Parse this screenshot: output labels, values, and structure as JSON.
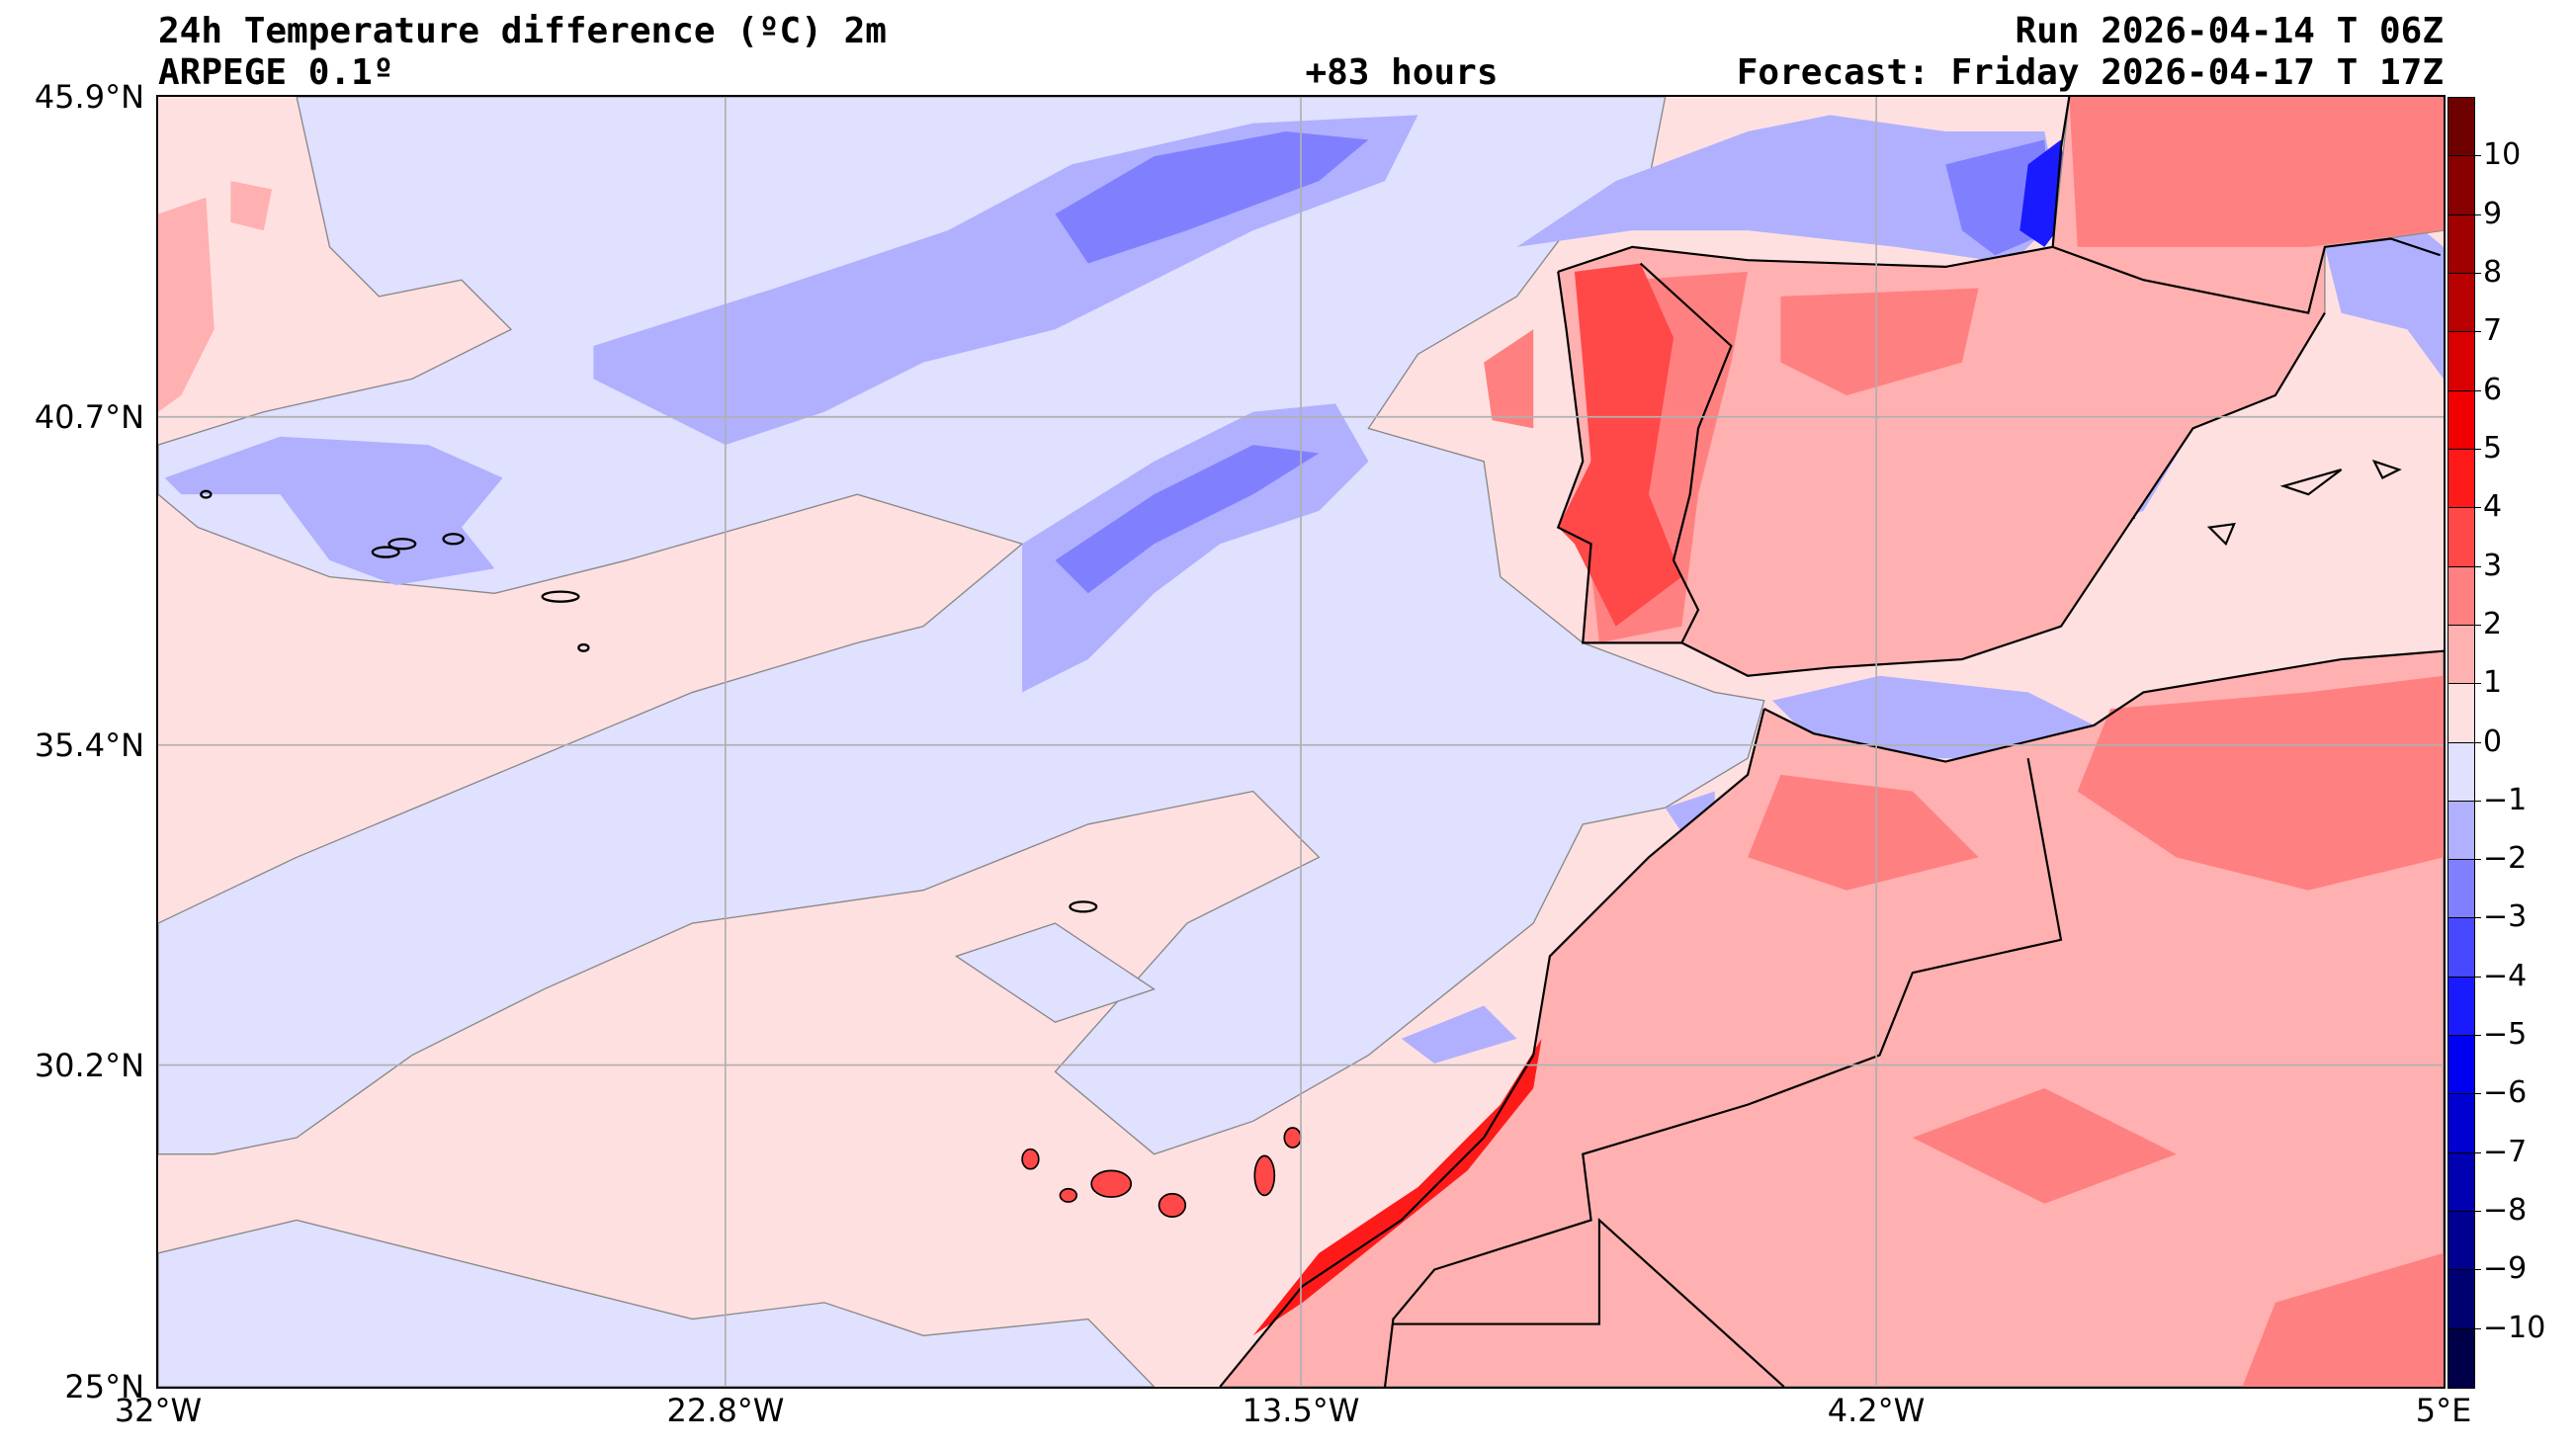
{
  "header": {
    "title": "24h Temperature difference (ºC) 2m",
    "model": "ARPEGE 0.1º",
    "lead": "+83 hours",
    "run": "Run 2026-04-14 T 06Z",
    "forecast": "Forecast: Friday 2026-04-17 T 17Z"
  },
  "axes": {
    "lat_labels": [
      "45.9°N",
      "40.7°N",
      "35.4°N",
      "30.2°N",
      "25°N"
    ],
    "lon_labels": [
      "32°W",
      "22.8°W",
      "13.5°W",
      "4.2°W",
      "5°E"
    ]
  },
  "colorbar": {
    "ticks": [
      "10",
      "9",
      "8",
      "7",
      "6",
      "5",
      "4",
      "3",
      "2",
      "1",
      "0",
      "−1",
      "−2",
      "−3",
      "−4",
      "−5",
      "−6",
      "−7",
      "−8",
      "−9",
      "−10"
    ],
    "colors": [
      "#6e0000",
      "#880000",
      "#a00000",
      "#b80000",
      "#d80000",
      "#f00000",
      "#ff1a1a",
      "#ff4848",
      "#ff8080",
      "#ffb0b0",
      "#ffe0e0",
      "#e0e0ff",
      "#b0b0ff",
      "#8080ff",
      "#4848ff",
      "#1a1aff",
      "#0000f0",
      "#0000d0",
      "#0000b0",
      "#000090",
      "#000070",
      "#000048"
    ]
  },
  "palette": {
    "pos1": "#ffe0e0",
    "pos2": "#ffb0b0",
    "pos3": "#ff8080",
    "pos4": "#ff4848",
    "pos5": "#ff1a1a",
    "neg1": "#e0e0ff",
    "neg2": "#b0b0ff",
    "neg3": "#8080ff",
    "neg4": "#4848ff",
    "neg5": "#1a1aff"
  }
}
